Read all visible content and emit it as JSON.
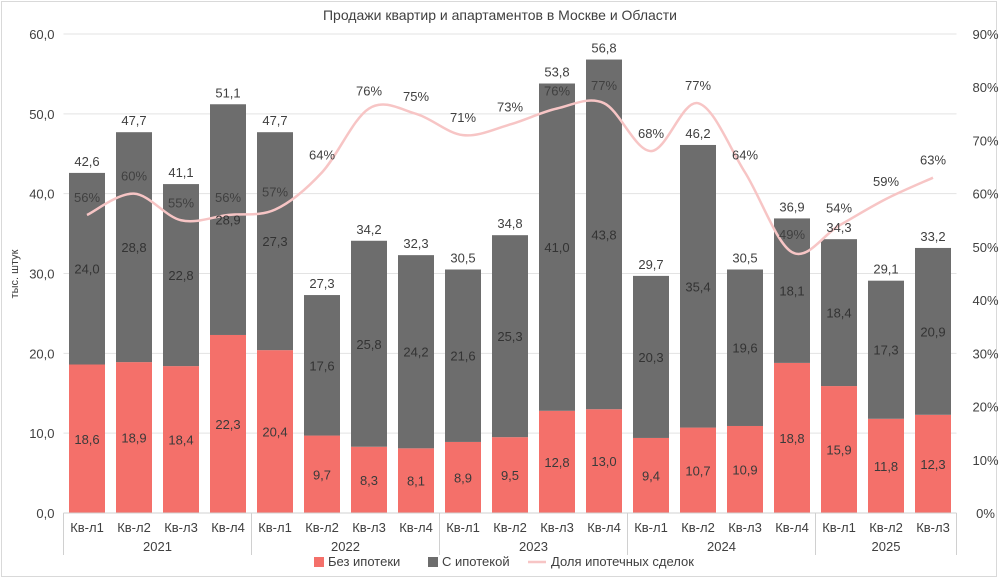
{
  "chart_data": {
    "type": "bar",
    "stacked": true,
    "title": "Продажи квартир и апартаментов в Москве и Области",
    "ylabel": "тыс. штук",
    "ylim": [
      0,
      60
    ],
    "y_ticks": [
      "0,0",
      "10,0",
      "20,0",
      "30,0",
      "40,0",
      "50,0",
      "60,0"
    ],
    "y2lim": [
      0,
      0.9
    ],
    "y2_ticks": [
      "0%",
      "10%",
      "20%",
      "30%",
      "40%",
      "50%",
      "60%",
      "70%",
      "80%",
      "90%"
    ],
    "grid": true,
    "legend_position": "bottom",
    "years": [
      {
        "label": "2021",
        "count": 4
      },
      {
        "label": "2022",
        "count": 4
      },
      {
        "label": "2023",
        "count": 4
      },
      {
        "label": "2024",
        "count": 4
      },
      {
        "label": "2025",
        "count": 3
      }
    ],
    "categories": [
      "Кв-л1",
      "Кв-л2",
      "Кв-л3",
      "Кв-л4",
      "Кв-л1",
      "Кв-л2",
      "Кв-л3",
      "Кв-л4",
      "Кв-л1",
      "Кв-л2",
      "Кв-л3",
      "Кв-л4",
      "Кв-л1",
      "Кв-л2",
      "Кв-л3",
      "Кв-л4",
      "Кв-л1",
      "Кв-л2",
      "Кв-л3"
    ],
    "series": [
      {
        "name": "Без ипотеки",
        "color": "#f4706a",
        "values": [
          18.6,
          18.9,
          18.4,
          22.3,
          20.4,
          9.7,
          8.3,
          8.1,
          8.9,
          9.5,
          12.8,
          13.0,
          9.4,
          10.7,
          10.9,
          18.8,
          15.9,
          11.8,
          12.3
        ],
        "labels": [
          "18,6",
          "18,9",
          "18,4",
          "22,3",
          "20,4",
          "9,7",
          "8,3",
          "8,1",
          "8,9",
          "9,5",
          "12,8",
          "13,0",
          "9,4",
          "10,7",
          "10,9",
          "18,8",
          "15,9",
          "11,8",
          "12,3"
        ]
      },
      {
        "name": "С ипотекой",
        "color": "#6d6d6d",
        "values": [
          24.0,
          28.8,
          22.8,
          28.9,
          27.3,
          17.6,
          25.8,
          24.2,
          21.6,
          25.3,
          41.0,
          43.8,
          20.3,
          35.4,
          19.6,
          18.1,
          18.4,
          17.3,
          20.9
        ],
        "labels": [
          "24,0",
          "28,8",
          "22,8",
          "28,9",
          "27,3",
          "17,6",
          "25,8",
          "24,2",
          "21,6",
          "25,3",
          "41,0",
          "43,8",
          "20,3",
          "35,4",
          "19,6",
          "18,1",
          "18,4",
          "17,3",
          "20,9"
        ]
      }
    ],
    "totals": [
      "42,6",
      "47,7",
      "41,1",
      "51,1",
      "47,7",
      "27,3",
      "34,2",
      "32,3",
      "30,5",
      "34,8",
      "53,8",
      "56,8",
      "29,7",
      "46,2",
      "30,5",
      "36,9",
      "34,3",
      "29,1",
      "33,2"
    ],
    "line": {
      "name": "Доля ипотечных сделок",
      "color": "#f7c5c5",
      "axis": "right",
      "values": [
        0.56,
        0.6,
        0.55,
        0.56,
        0.57,
        0.64,
        0.76,
        0.75,
        0.71,
        0.73,
        0.76,
        0.77,
        0.68,
        0.77,
        0.64,
        0.49,
        0.54,
        0.59,
        0.63
      ],
      "labels": [
        "56%",
        "60%",
        "55%",
        "56%",
        "57%",
        "64%",
        "76%",
        "75%",
        "71%",
        "73%",
        "76%",
        "77%",
        "68%",
        "77%",
        "64%",
        "49%",
        "54%",
        "59%",
        "63%"
      ]
    }
  }
}
